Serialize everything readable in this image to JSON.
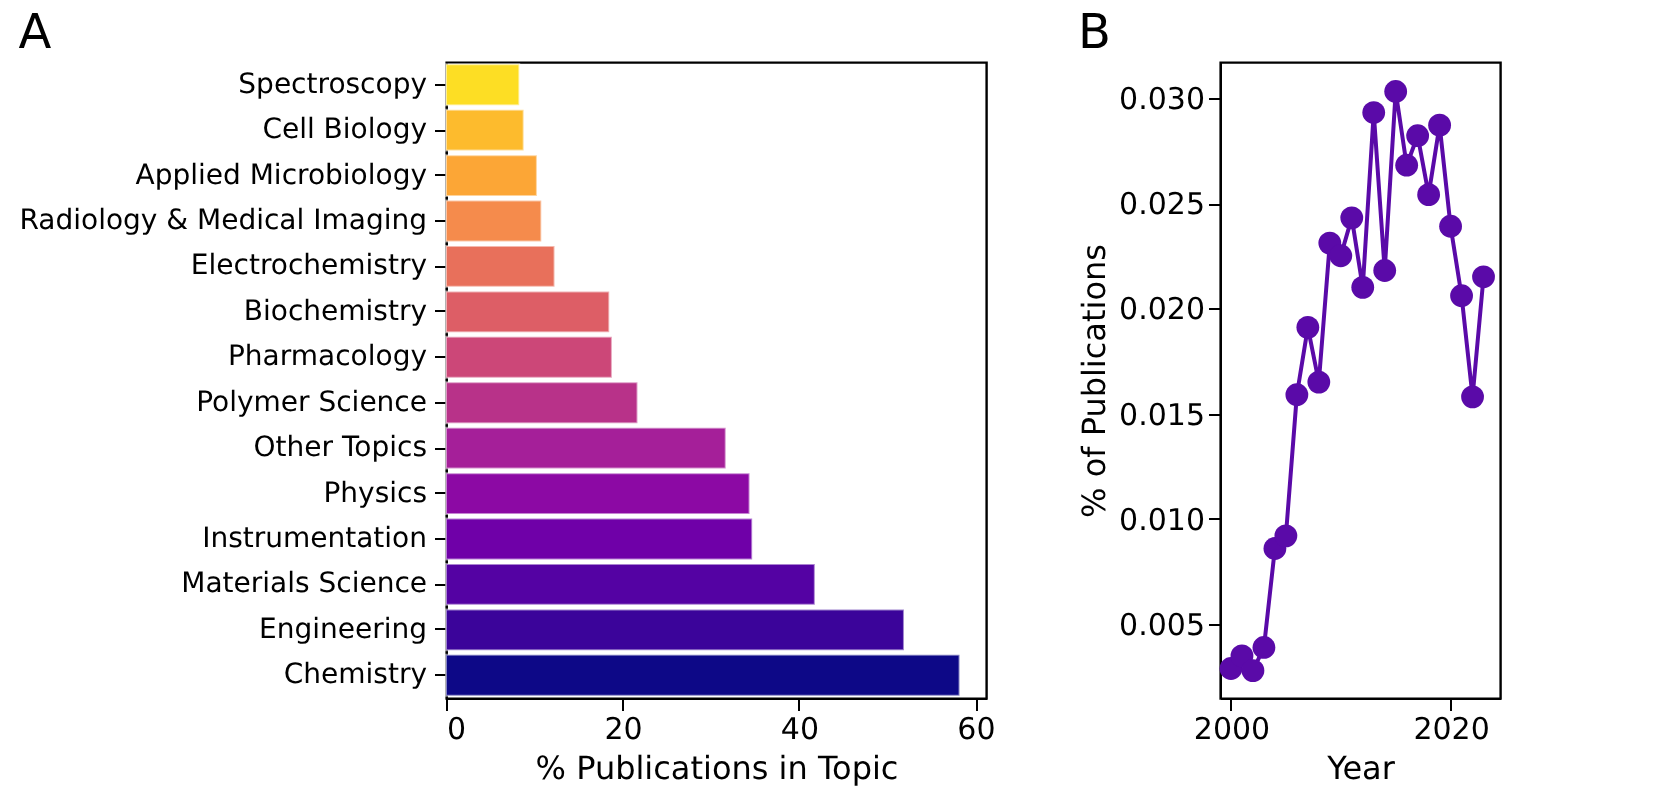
{
  "chart_data": [
    {
      "type": "bar",
      "title": "A",
      "orientation": "horizontal",
      "xlabel": "% Publications in Topic",
      "categories": [
        "Spectroscopy",
        "Cell Biology",
        "Applied Microbiology",
        "Radiology & Medical Imaging",
        "Electrochemistry",
        "Biochemistry",
        "Pharmacology",
        "Polymer Science",
        "Other Topics",
        "Physics",
        "Instrumentation",
        "Materials Science",
        "Engineering",
        "Chemistry"
      ],
      "values": [
        8.3,
        8.8,
        10.3,
        10.8,
        12.3,
        18.5,
        18.8,
        21.7,
        31.7,
        34.4,
        34.7,
        41.8,
        51.9,
        58.2
      ],
      "colors": [
        "#fdde24",
        "#fdbb2d",
        "#fca636",
        "#f58b4c",
        "#e8705b",
        "#dd5e66",
        "#cc4778",
        "#b83289",
        "#a51f99",
        "#8c09a4",
        "#6f00a8",
        "#5402a3",
        "#3b049a",
        "#0d0887"
      ],
      "xlim": [
        0,
        61.2
      ],
      "xticks": [
        0,
        20,
        40,
        60
      ],
      "grid": false
    },
    {
      "type": "line",
      "title": "B",
      "xlabel": "Year",
      "ylabel": "% of Publications",
      "marker": "circle",
      "grid": false,
      "x": [
        2000,
        2001,
        2002,
        2003,
        2004,
        2005,
        2006,
        2007,
        2008,
        2009,
        2010,
        2011,
        2012,
        2013,
        2014,
        2015,
        2016,
        2017,
        2018,
        2019,
        2020,
        2021,
        2022,
        2023
      ],
      "series": [
        {
          "color": "#5a0aa8",
          "values": [
            0.0029,
            0.0035,
            0.0028,
            0.0039,
            0.0086,
            0.0092,
            0.0159,
            0.0191,
            0.0165,
            0.0231,
            0.0225,
            0.0243,
            0.021,
            0.0293,
            0.0218,
            0.0303,
            0.0268,
            0.0282,
            0.0254,
            0.0287,
            0.0239,
            0.0206,
            0.0158,
            0.0215
          ]
        }
      ],
      "xlim": [
        1999,
        2024.5
      ],
      "xticks": [
        2000,
        2020
      ],
      "ylim": [
        0.0015,
        0.0317
      ],
      "yticks": [
        0.005,
        {
          "value": 0.01,
          "label": "0.010"
        },
        0.015,
        {
          "value": 0.02,
          "label": "0.020"
        },
        0.025,
        {
          "value": 0.03,
          "label": "0.030"
        }
      ]
    }
  ]
}
